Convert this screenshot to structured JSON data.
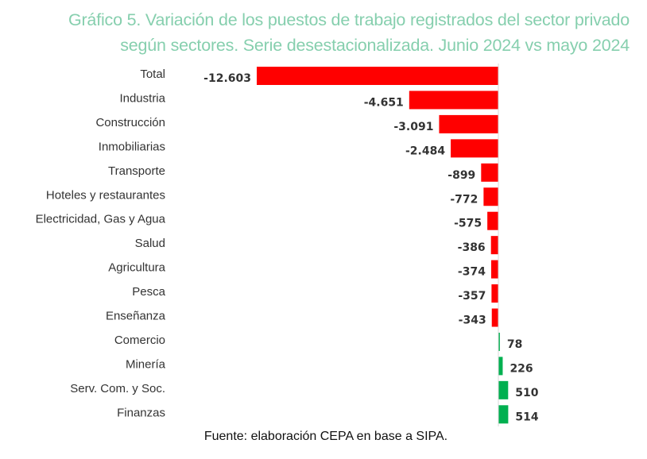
{
  "chart_data": {
    "type": "bar",
    "orientation": "horizontal",
    "title": "Gráfico 5. Variación de los puestos de trabajo registrados del sector privado según sectores. Serie desestacionalizada. Junio 2024 vs mayo 2024",
    "title_lines": [
      "Gráfico 5. Variación de los puestos de trabajo registrados del sector privado",
      "según sectores. Serie desestacionalizada. Junio 2024 vs mayo 2024"
    ],
    "categories": [
      "Total",
      "Industria",
      "Construcción",
      "Inmobiliarias",
      "Transporte",
      "Hoteles y restaurantes",
      "Electricidad, Gas y Agua",
      "Salud",
      "Agricultura",
      "Pesca",
      "Enseñanza",
      "Comercio",
      "Minería",
      "Serv. Com. y Soc.",
      "Finanzas"
    ],
    "values": [
      -12603,
      -4651,
      -3091,
      -2484,
      -899,
      -772,
      -575,
      -386,
      -374,
      -357,
      -343,
      78,
      226,
      510,
      514
    ],
    "data_labels": [
      "-12.603",
      "-4.651",
      "-3.091",
      "-2.484",
      "-899",
      "-772",
      "-575",
      "-386",
      "-374",
      "-357",
      "-343",
      "78",
      "226",
      "510",
      "514"
    ],
    "xlabel": "",
    "ylabel": "",
    "grid": false,
    "legend": "none",
    "colors": {
      "negative": "#ff0000",
      "positive": "#00b050",
      "title": "#86cfae"
    }
  },
  "source": "Fuente: elaboración CEPA en base a SIPA."
}
